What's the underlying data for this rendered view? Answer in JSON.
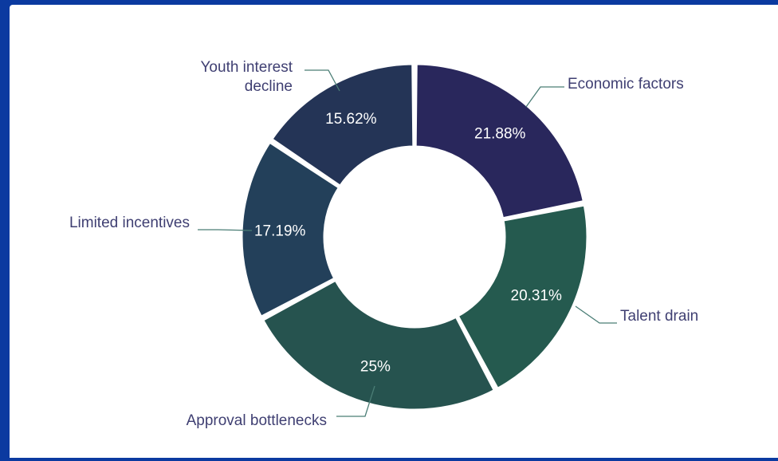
{
  "chart_data": {
    "type": "pie",
    "title": "",
    "series": [
      {
        "values": [
          21.88,
          20.31,
          25,
          17.19,
          15.62
        ]
      }
    ],
    "categories": [
      "Economic factors",
      "Talent drain",
      "Approval bottlenecks",
      "Limited incentives",
      "Youth interest decline"
    ],
    "data_labels": [
      "21.88%",
      "20.31%",
      "25%",
      "17.19%",
      "15.62%"
    ],
    "colors": [
      "#29275c",
      "#255a4f",
      "#26534f",
      "#23405a",
      "#243456"
    ],
    "donut": true,
    "legend": "none"
  }
}
